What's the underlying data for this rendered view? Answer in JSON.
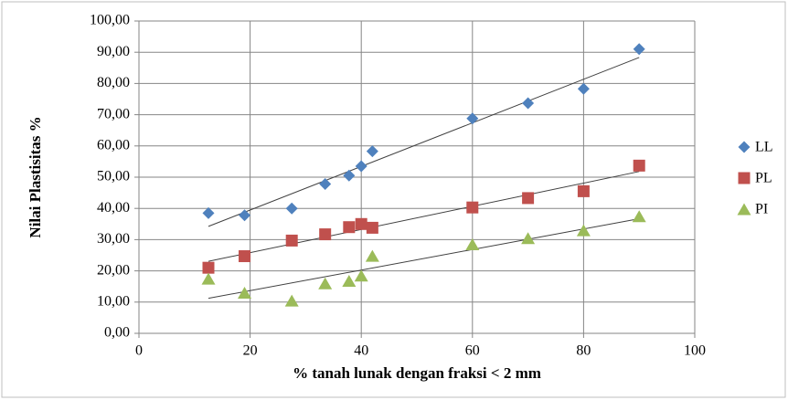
{
  "chart_data": {
    "type": "scatter",
    "y_label": "Nilai Plastisitas %",
    "x_label": "% tanah lunak dengan fraksi < 2 mm",
    "x": [
      12.5,
      19,
      27.5,
      33.5,
      37.8,
      40,
      42,
      60,
      70,
      80,
      90
    ],
    "series": [
      {
        "name": "LL",
        "color": "#4f81bd",
        "marker": "diamond",
        "values": [
          38.5,
          37.8,
          40,
          47.8,
          50.5,
          53.5,
          58.3,
          68.8,
          73.7,
          78.3,
          91
        ]
      },
      {
        "name": "PL",
        "color": "#c0504d",
        "marker": "square",
        "values": [
          21,
          24.7,
          29.7,
          31.7,
          34,
          35,
          33.8,
          40.3,
          43.3,
          45.5,
          53.7
        ]
      },
      {
        "name": "PI",
        "color": "#9bbb59",
        "marker": "triangle",
        "values": [
          17.5,
          13,
          10.5,
          16,
          16.8,
          18.5,
          24.8,
          28.5,
          30.5,
          33,
          37.5
        ]
      }
    ],
    "trendline": "linear",
    "xlim": [
      0,
      100
    ],
    "xticks": [
      0,
      20,
      40,
      60,
      80,
      100
    ],
    "ylim": [
      0,
      100
    ],
    "yticks": [
      {
        "value": 0,
        "label": "0,00"
      },
      {
        "value": 10,
        "label": "10,00"
      },
      {
        "value": 20,
        "label": "20,00"
      },
      {
        "value": 30,
        "label": "30,00"
      },
      {
        "value": 40,
        "label": "40,00"
      },
      {
        "value": 50,
        "label": "50,00"
      },
      {
        "value": 60,
        "label": "60,00"
      },
      {
        "value": 70,
        "label": "70,00"
      },
      {
        "value": 80,
        "label": "80,00"
      },
      {
        "value": 90,
        "label": "90,00"
      },
      {
        "value": 100,
        "label": "100,00"
      }
    ],
    "grid": true,
    "legend": "right"
  }
}
